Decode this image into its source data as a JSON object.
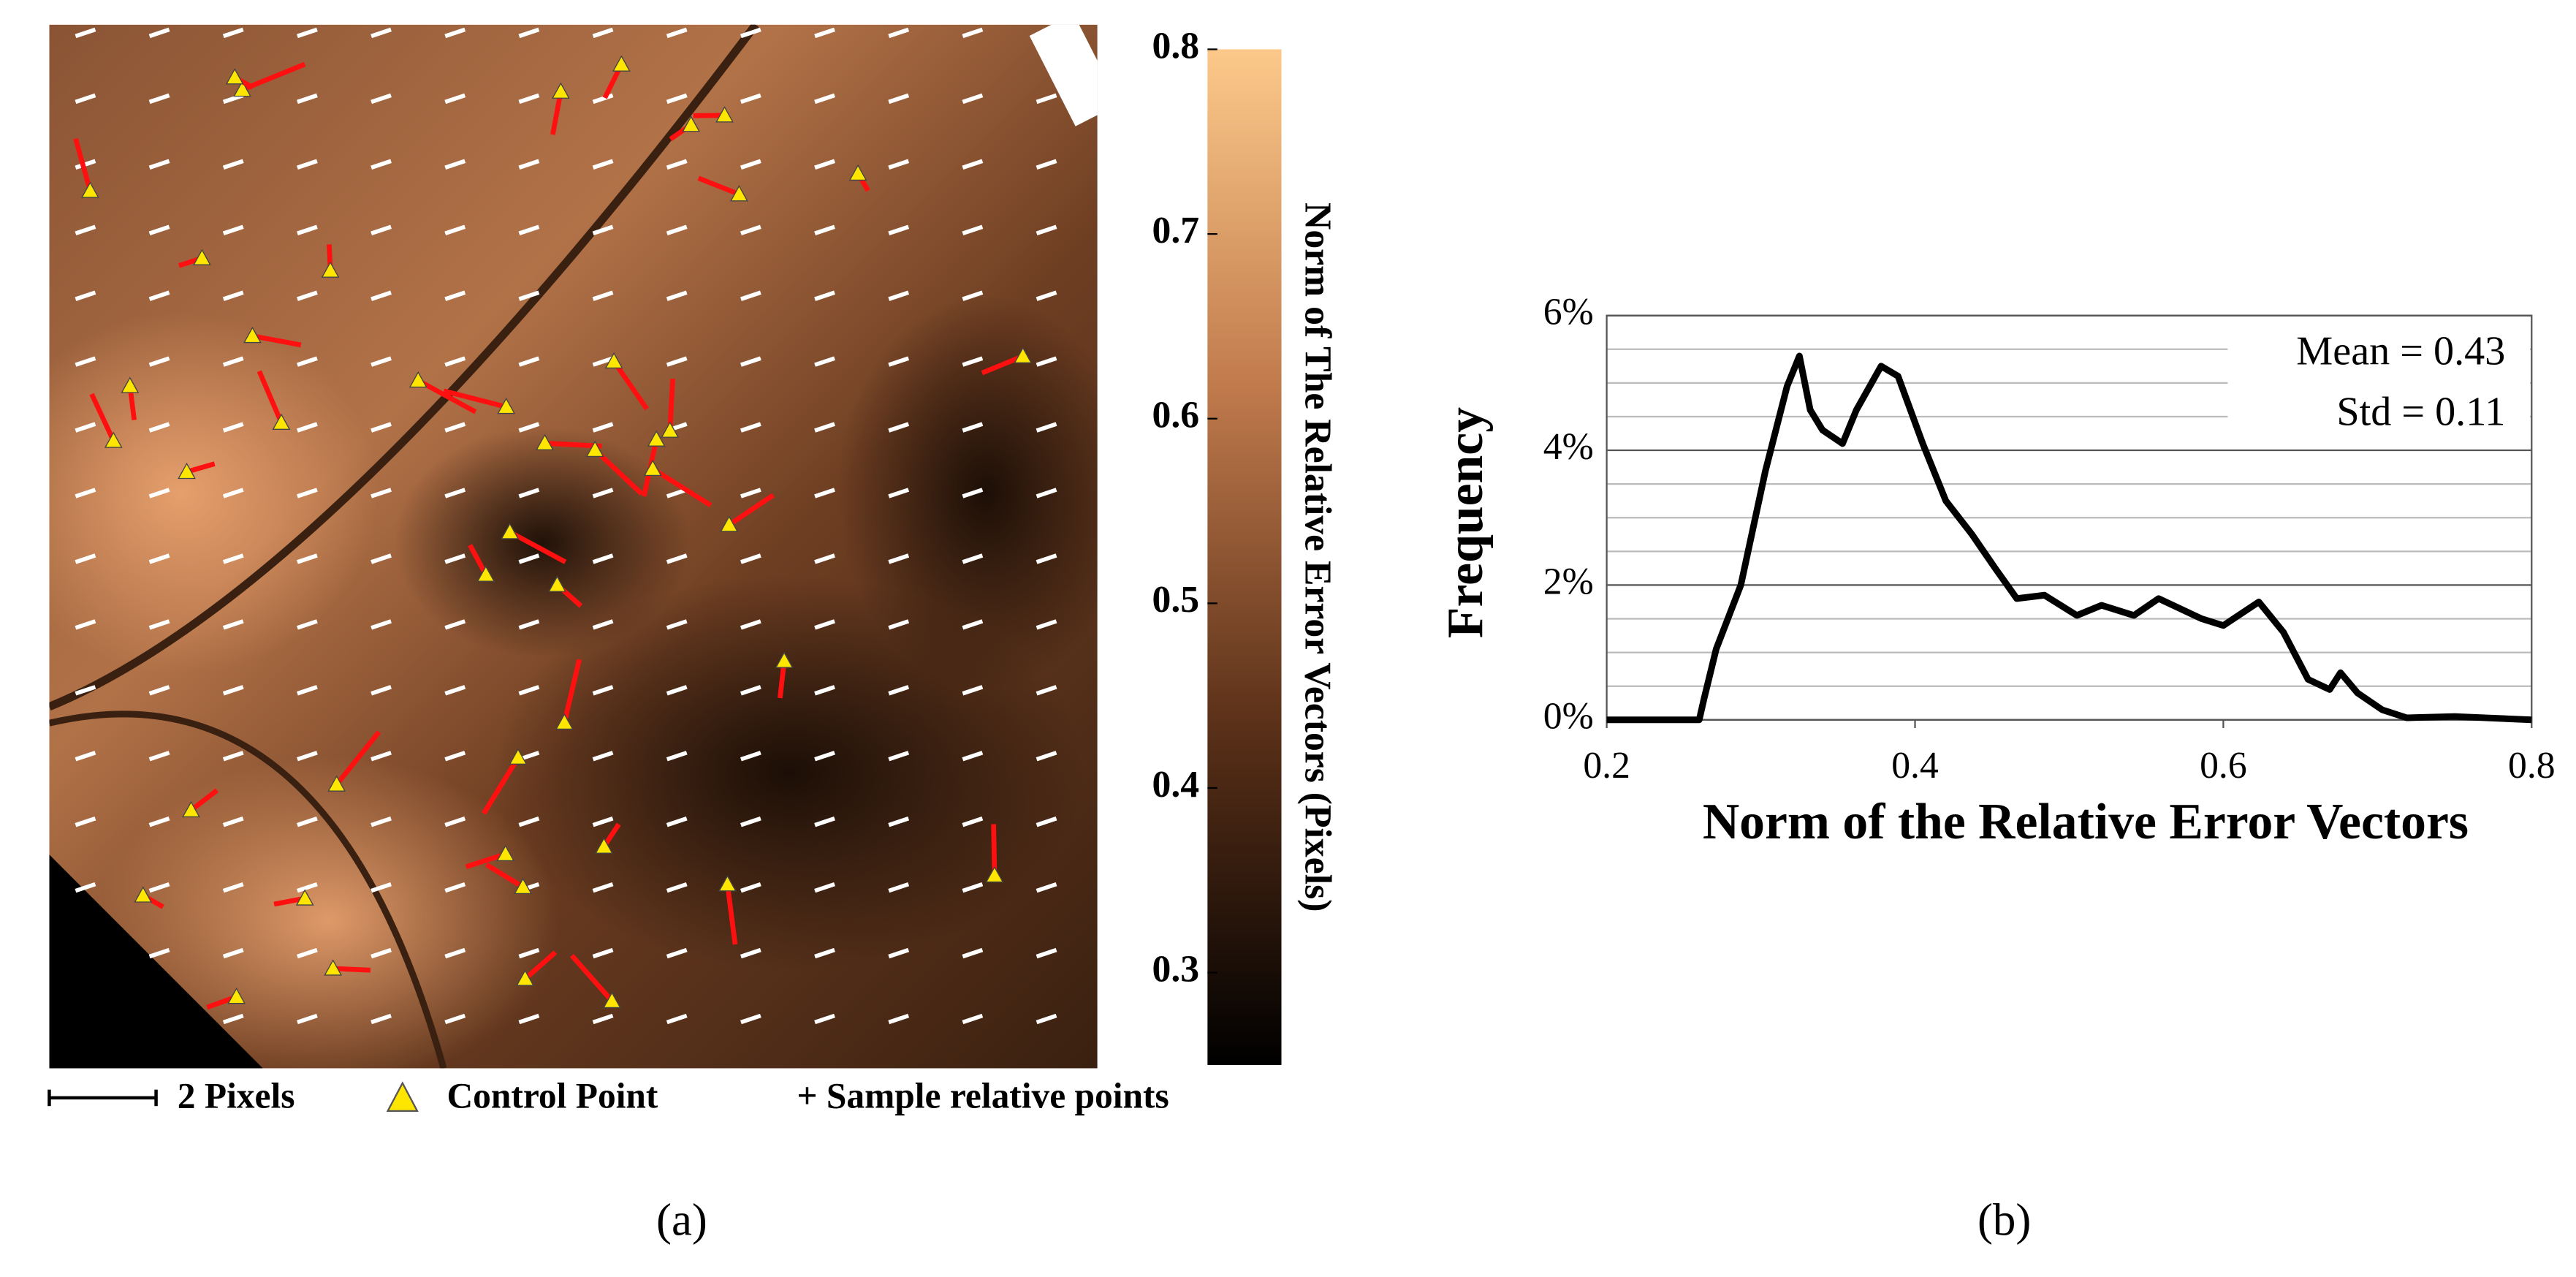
{
  "chart_data": [
    {
      "type": "map",
      "colorbar_label": "Norm of The Relative Error Vectors (Pixels)",
      "clim": [
        0.25,
        0.8
      ],
      "cticks": [
        0.3,
        0.4,
        0.5,
        0.6,
        0.7,
        0.8
      ],
      "colormap": [
        "#000000",
        "#5a3018",
        "#c07a4c",
        "#fcc98a"
      ],
      "legend": [
        "2 Pixels",
        "Control Point",
        "+ Sample relative points"
      ],
      "caption": "(a)"
    },
    {
      "type": "line",
      "x": [
        0.2,
        0.25,
        0.26,
        0.263,
        0.271,
        0.287,
        0.303,
        0.317,
        0.325,
        0.332,
        0.34,
        0.353,
        0.362,
        0.378,
        0.389,
        0.405,
        0.42,
        0.437,
        0.452,
        0.466,
        0.484,
        0.505,
        0.521,
        0.542,
        0.558,
        0.586,
        0.6,
        0.623,
        0.639,
        0.655,
        0.669,
        0.676,
        0.687,
        0.703,
        0.719,
        0.75,
        0.8
      ],
      "values": [
        0,
        0,
        0,
        0.3,
        1.05,
        2.0,
        3.7,
        4.95,
        5.4,
        4.6,
        4.3,
        4.1,
        4.6,
        5.25,
        5.1,
        4.1,
        3.25,
        2.75,
        2.25,
        1.8,
        1.85,
        1.55,
        1.7,
        1.55,
        1.8,
        1.5,
        1.4,
        1.75,
        1.3,
        0.6,
        0.45,
        0.7,
        0.4,
        0.15,
        0.03,
        0.05,
        0
      ],
      "color": "#000000",
      "xlim": [
        0.2,
        0.8
      ],
      "xticks": [
        0.2,
        0.4,
        0.6,
        0.8
      ],
      "ylim": [
        0,
        6
      ],
      "yticks": [
        {
          "value": 0,
          "label": "0%"
        },
        {
          "value": 2,
          "label": "2%"
        },
        {
          "value": 4,
          "label": "4%"
        },
        {
          "value": 6,
          "label": "6%"
        }
      ],
      "grid_lines": [
        0.5,
        1,
        1.5,
        2.5,
        3,
        3.5,
        4.5,
        5,
        5.5
      ],
      "xlabel": "Norm of the Relative Error Vectors",
      "ylabel": "Frequency",
      "annotations": [
        "Mean = 0.43",
        "Std = 0.11"
      ],
      "caption": "(b)"
    }
  ]
}
